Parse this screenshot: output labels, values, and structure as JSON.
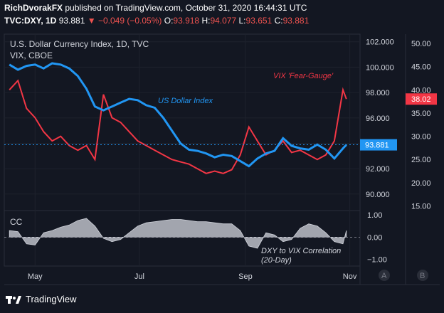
{
  "header": {
    "publisher": "RichDvorakFX",
    "publisher_text": "published on TradingView.com, October 31, 2020 16:44:31 UTC",
    "symbol": "TVC:DXY, 1D",
    "last": "93.881",
    "change": "−0.049 (−0.05%)",
    "open_label": "O:",
    "open": "93.918",
    "high_label": "H:",
    "high": "94.077",
    "low_label": "L:",
    "low": "93.651",
    "close_label": "C:",
    "close": "93.881"
  },
  "panes": {
    "main_title": "U.S. Dollar Currency Index, 1D, TVC",
    "vix_title": "VIX, CBOE",
    "cc_title": "CC",
    "pane_a": "A",
    "pane_b": "B"
  },
  "badges": {
    "vix": "38.02",
    "dxy": "93.881"
  },
  "annotations": {
    "vix": "VIX 'Fear-Gauge'",
    "usd": "US Dollar Index",
    "corr_line1": "DXY to VIX Correlation",
    "corr_line2": "(20-Day)"
  },
  "brand": {
    "name": "TradingView"
  },
  "colors": {
    "dxy": "#2196f3",
    "vix": "#f23645",
    "cc": "#b2b5be",
    "background": "#131722",
    "grid": "#1e222d"
  },
  "chart_data": [
    {
      "type": "line",
      "series": [
        {
          "name": "US Dollar Index",
          "x": [
            "2020-04-16",
            "2020-04-21",
            "2020-04-26",
            "2020-05-01",
            "2020-05-06",
            "2020-05-11",
            "2020-05-16",
            "2020-05-21",
            "2020-05-26",
            "2020-05-31",
            "2020-06-05",
            "2020-06-10",
            "2020-06-15",
            "2020-06-20",
            "2020-06-25",
            "2020-06-30",
            "2020-07-05",
            "2020-07-10",
            "2020-07-15",
            "2020-07-20",
            "2020-07-25",
            "2020-07-30",
            "2020-08-04",
            "2020-08-09",
            "2020-08-14",
            "2020-08-19",
            "2020-08-24",
            "2020-08-29",
            "2020-09-03",
            "2020-09-08",
            "2020-09-13",
            "2020-09-18",
            "2020-09-23",
            "2020-09-28",
            "2020-10-03",
            "2020-10-08",
            "2020-10-13",
            "2020-10-18",
            "2020-10-23",
            "2020-10-28",
            "2020-10-30"
          ],
          "values": [
            100.2,
            99.8,
            100.1,
            100.2,
            99.9,
            100.3,
            100.2,
            99.9,
            99.3,
            98.3,
            96.9,
            96.6,
            96.9,
            97.2,
            97.5,
            97.4,
            97.0,
            96.8,
            96.0,
            95.0,
            94.0,
            93.5,
            93.4,
            93.2,
            92.9,
            93.1,
            93.0,
            92.6,
            92.2,
            92.8,
            93.2,
            93.4,
            94.4,
            93.8,
            93.6,
            93.5,
            93.9,
            93.5,
            92.8,
            93.6,
            93.881
          ]
        },
        {
          "name": "VIX 'Fear-Gauge'",
          "x": [
            "2020-04-16",
            "2020-04-21",
            "2020-04-26",
            "2020-05-01",
            "2020-05-06",
            "2020-05-11",
            "2020-05-16",
            "2020-05-21",
            "2020-05-26",
            "2020-05-31",
            "2020-06-05",
            "2020-06-10",
            "2020-06-15",
            "2020-06-20",
            "2020-06-25",
            "2020-06-30",
            "2020-07-05",
            "2020-07-10",
            "2020-07-15",
            "2020-07-20",
            "2020-07-25",
            "2020-07-30",
            "2020-08-04",
            "2020-08-09",
            "2020-08-14",
            "2020-08-19",
            "2020-08-24",
            "2020-08-29",
            "2020-09-03",
            "2020-09-08",
            "2020-09-13",
            "2020-09-18",
            "2020-09-23",
            "2020-09-28",
            "2020-10-03",
            "2020-10-08",
            "2020-10-13",
            "2020-10-18",
            "2020-10-23",
            "2020-10-28",
            "2020-10-30"
          ],
          "values": [
            40.0,
            42.0,
            36.0,
            34.0,
            31.0,
            29.0,
            30.0,
            28.0,
            27.0,
            28.0,
            25.0,
            39.0,
            34.0,
            33.0,
            31.0,
            29.0,
            28.0,
            27.0,
            26.0,
            25.0,
            24.5,
            24.0,
            23.0,
            22.0,
            22.5,
            22.0,
            22.8,
            26.0,
            32.0,
            29.0,
            26.0,
            27.0,
            29.0,
            26.5,
            27.0,
            26.0,
            25.0,
            26.0,
            29.0,
            40.0,
            38.02
          ]
        }
      ],
      "x_ticks": [
        "May",
        "Jul",
        "Sep",
        "Nov"
      ],
      "ylim_dxy": [
        88.7,
        102.6
      ],
      "ylim_vix": [
        14.0,
        52.0
      ],
      "yticks_dxy": [
        "102.000",
        "100.000",
        "98.000",
        "96.000",
        "94.000",
        "92.000",
        "90.000"
      ],
      "yticks_vix": [
        "50.00",
        "45.00",
        "40.00",
        "35.00",
        "30.00",
        "25.00",
        "20.00",
        "15.00"
      ]
    },
    {
      "type": "area",
      "series": [
        {
          "name": "CC",
          "x": [
            "2020-04-16",
            "2020-04-21",
            "2020-04-26",
            "2020-05-01",
            "2020-05-06",
            "2020-05-11",
            "2020-05-16",
            "2020-05-21",
            "2020-05-26",
            "2020-05-31",
            "2020-06-05",
            "2020-06-10",
            "2020-06-15",
            "2020-06-20",
            "2020-06-25",
            "2020-06-30",
            "2020-07-05",
            "2020-07-10",
            "2020-07-15",
            "2020-07-20",
            "2020-07-25",
            "2020-07-30",
            "2020-08-04",
            "2020-08-09",
            "2020-08-14",
            "2020-08-19",
            "2020-08-24",
            "2020-08-29",
            "2020-09-03",
            "2020-09-08",
            "2020-09-13",
            "2020-09-18",
            "2020-09-23",
            "2020-09-28",
            "2020-10-03",
            "2020-10-08",
            "2020-10-13",
            "2020-10-18",
            "2020-10-23",
            "2020-10-28",
            "2020-10-30"
          ],
          "values": [
            0.3,
            0.25,
            -0.3,
            -0.35,
            0.2,
            0.3,
            0.45,
            0.55,
            0.75,
            0.85,
            0.5,
            -0.05,
            -0.2,
            -0.1,
            0.2,
            0.5,
            0.65,
            0.7,
            0.75,
            0.8,
            0.8,
            0.75,
            0.7,
            0.7,
            0.65,
            0.6,
            0.6,
            0.3,
            -0.4,
            -0.5,
            0.2,
            0.1,
            -0.2,
            -0.1,
            0.4,
            0.6,
            0.5,
            0.2,
            -0.2,
            -0.3,
            0.3
          ]
        }
      ],
      "ylim": [
        -1.3,
        1.2
      ],
      "yticks": [
        "1.00",
        "0.00",
        "−1.00"
      ]
    }
  ]
}
